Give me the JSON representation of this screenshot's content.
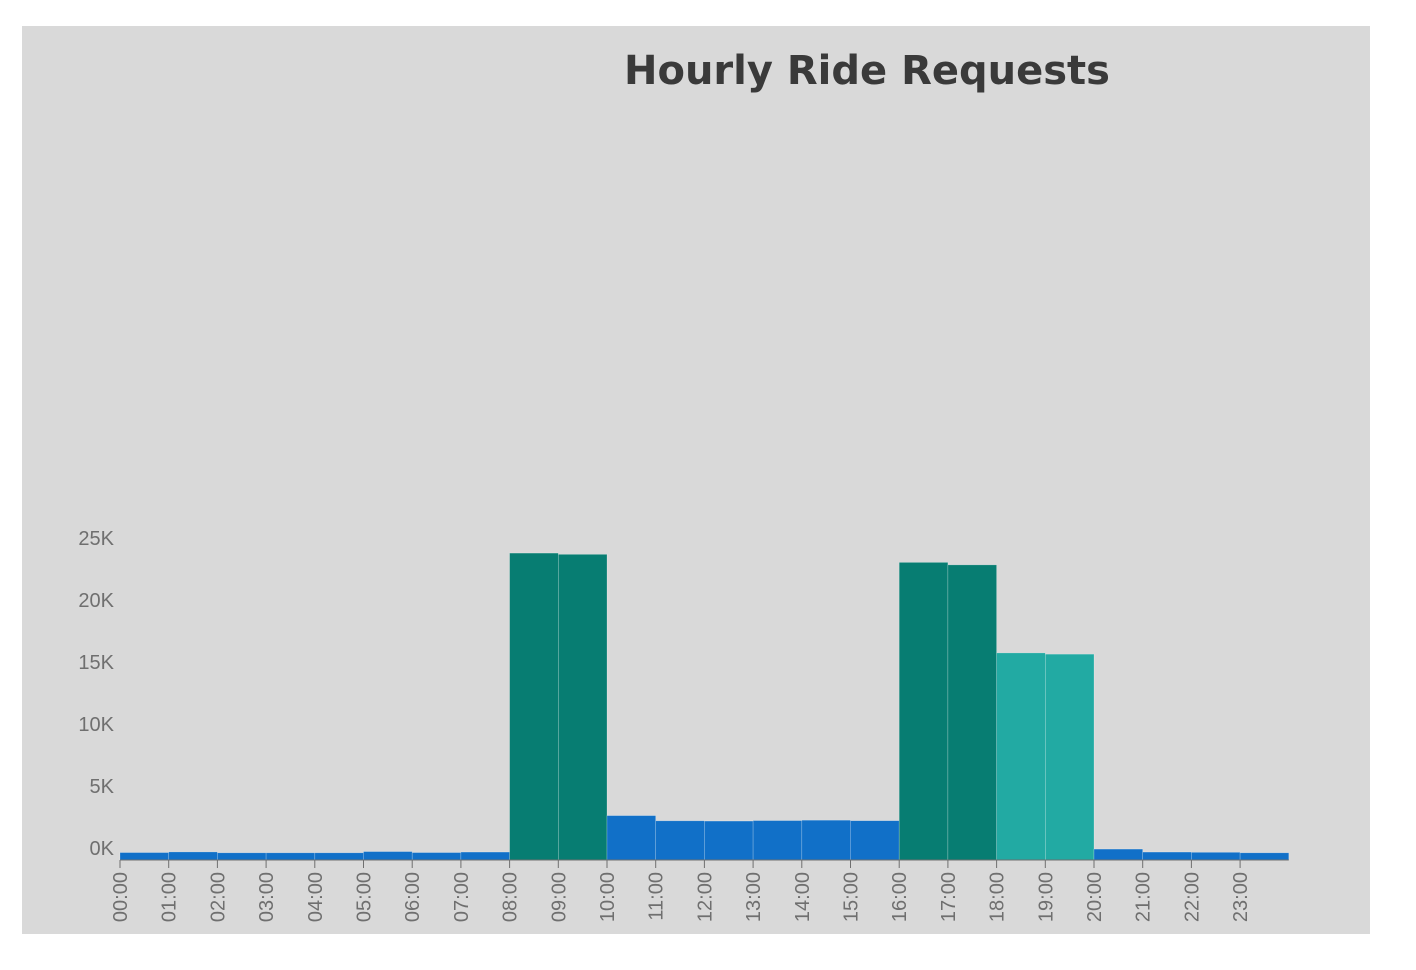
{
  "chart_data": {
    "type": "bar",
    "title": "Hourly Ride Requests",
    "xlabel": "",
    "ylabel": "",
    "ylim": [
      0,
      25000
    ],
    "y_ticks": [
      0,
      5000,
      10000,
      15000,
      20000,
      25000
    ],
    "y_tick_labels": [
      "0K",
      "5K",
      "10K",
      "15K",
      "20K",
      "25K"
    ],
    "grid": false,
    "categories": [
      "00:00",
      "01:00",
      "02:00",
      "03:00",
      "04:00",
      "05:00",
      "06:00",
      "07:00",
      "08:00",
      "09:00",
      "10:00",
      "11:00",
      "12:00",
      "13:00",
      "14:00",
      "15:00",
      "16:00",
      "17:00",
      "18:00",
      "19:00",
      "20:00",
      "21:00",
      "22:00",
      "23:00"
    ],
    "values": [
      600,
      650,
      580,
      580,
      580,
      680,
      600,
      640,
      24750,
      24650,
      3580,
      3160,
      3140,
      3180,
      3210,
      3170,
      24000,
      23800,
      16700,
      16600,
      880,
      640,
      620,
      580
    ],
    "bar_colors": [
      "#1170c8",
      "#1170c8",
      "#1170c8",
      "#1170c8",
      "#1170c8",
      "#1170c8",
      "#1170c8",
      "#1170c8",
      "#077d72",
      "#077d72",
      "#1170c8",
      "#1170c8",
      "#1170c8",
      "#1170c8",
      "#1170c8",
      "#1170c8",
      "#077d72",
      "#077d72",
      "#22aaa3",
      "#22aaa3",
      "#1170c8",
      "#1170c8",
      "#1170c8",
      "#1170c8"
    ],
    "background_color": "#d9d9d9"
  }
}
